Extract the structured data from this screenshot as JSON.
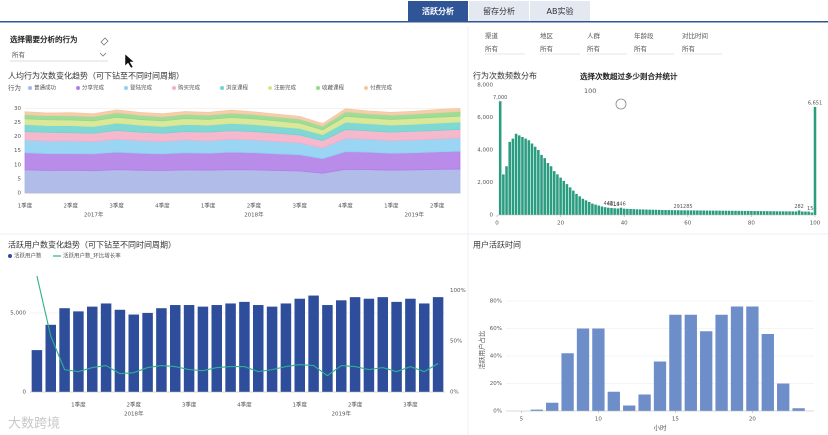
{
  "tabs": [
    "活跃分析",
    "留存分析",
    "AB实验"
  ],
  "behavior_filter": {
    "label": "选择需要分析的行为",
    "value": "所有"
  },
  "filters": [
    {
      "label": "渠道",
      "value": "所有"
    },
    {
      "label": "地区",
      "value": "所有"
    },
    {
      "label": "人群",
      "value": "所有"
    },
    {
      "label": "年龄段",
      "value": "所有"
    },
    {
      "label": "对比时间",
      "value": "所有"
    }
  ],
  "watermark": "大数跨境",
  "chart_data": [
    {
      "type": "area",
      "title": "人均行为次数变化趋势（可下钻至不同时间周期）",
      "legend_title": "行为",
      "categories": [
        "1季度",
        null,
        "2季度",
        null,
        "3季度",
        null,
        "4季度",
        null,
        "1季度",
        null,
        "2季度",
        null,
        "3季度",
        null,
        "4季度",
        null,
        "1季度",
        null,
        "2季度",
        null
      ],
      "group_labels": [
        "2017年",
        "2018年",
        "2019年"
      ],
      "series": [
        {
          "name": "普通成功",
          "color": "#a9b6e6",
          "values": [
            8.2,
            8.0,
            8.1,
            7.9,
            8.3,
            8.1,
            8.0,
            8.2,
            8.1,
            8.3,
            8.2,
            8.0,
            7.8,
            7.0,
            8.4,
            8.3,
            8.1,
            8.2,
            8.4,
            8.5
          ]
        },
        {
          "name": "分享完成",
          "color": "#b27fe8",
          "values": [
            6.1,
            6.0,
            5.9,
            6.0,
            6.2,
            6.0,
            5.9,
            6.1,
            6.0,
            6.2,
            6.1,
            5.9,
            5.8,
            5.2,
            6.3,
            6.2,
            6.0,
            6.1,
            6.2,
            6.3
          ]
        },
        {
          "name": "登陆完成",
          "color": "#8fd0f2",
          "values": [
            4.5,
            4.4,
            4.5,
            4.3,
            4.6,
            4.5,
            4.4,
            4.5,
            4.4,
            4.6,
            4.5,
            4.4,
            4.2,
            3.8,
            4.7,
            4.6,
            4.5,
            4.5,
            4.6,
            4.7
          ]
        },
        {
          "name": "购买完成",
          "color": "#f4b0c8",
          "values": [
            3.0,
            3.1,
            2.9,
            3.0,
            3.1,
            3.0,
            2.9,
            3.0,
            3.1,
            3.0,
            3.0,
            2.9,
            2.8,
            2.6,
            3.1,
            3.0,
            3.0,
            3.1,
            3.0,
            3.1
          ]
        },
        {
          "name": "浏览课程",
          "color": "#72d4cf",
          "values": [
            2.5,
            2.4,
            2.5,
            2.4,
            2.6,
            2.5,
            2.4,
            2.5,
            2.5,
            2.6,
            2.5,
            2.4,
            2.3,
            2.1,
            2.6,
            2.5,
            2.5,
            2.5,
            2.6,
            2.6
          ]
        },
        {
          "name": "注册完成",
          "color": "#d8e68e",
          "values": [
            2.0,
            2.1,
            2.0,
            2.0,
            2.1,
            2.0,
            2.0,
            2.1,
            2.0,
            2.1,
            2.0,
            2.0,
            1.9,
            1.7,
            2.1,
            2.0,
            2.0,
            2.1,
            2.1,
            2.1
          ]
        },
        {
          "name": "收藏课程",
          "color": "#92d98c",
          "values": [
            1.5,
            1.4,
            1.5,
            1.5,
            1.6,
            1.5,
            1.4,
            1.5,
            1.5,
            1.5,
            1.5,
            1.4,
            1.4,
            1.3,
            1.6,
            1.5,
            1.5,
            1.5,
            1.6,
            1.6
          ]
        },
        {
          "name": "付费完成",
          "color": "#f4c9a2",
          "values": [
            1.0,
            1.0,
            1.1,
            1.0,
            1.0,
            1.0,
            1.1,
            1.0,
            1.0,
            1.1,
            1.0,
            1.0,
            1.0,
            0.9,
            1.1,
            1.0,
            1.0,
            1.0,
            1.1,
            1.1
          ]
        }
      ],
      "ylim": [
        0,
        33
      ],
      "yticks": [
        0,
        5,
        10,
        15,
        20,
        25,
        30
      ],
      "grid": true
    },
    {
      "type": "bar",
      "title": "行为次数频数分布",
      "annotation": "选择次数超过多少则合并统计",
      "slider_value": 100,
      "color": "#2a9c80",
      "x": [
        1,
        2,
        3,
        4,
        5,
        6,
        7,
        8,
        9,
        10,
        11,
        12,
        13,
        14,
        15,
        16,
        17,
        18,
        19,
        20,
        21,
        22,
        23,
        24,
        25,
        26,
        27,
        28,
        29,
        30,
        31,
        32,
        33,
        34,
        35,
        36,
        37,
        38,
        39,
        40,
        41,
        42,
        43,
        44,
        45,
        46,
        47,
        48,
        49,
        50,
        51,
        52,
        53,
        54,
        55,
        56,
        57,
        58,
        59,
        60,
        61,
        62,
        63,
        64,
        65,
        66,
        67,
        68,
        69,
        70,
        71,
        72,
        73,
        74,
        75,
        76,
        77,
        78,
        79,
        80,
        81,
        82,
        83,
        84,
        85,
        86,
        87,
        88,
        89,
        90,
        91,
        92,
        93,
        94,
        95,
        96,
        97,
        98,
        99,
        100
      ],
      "values": [
        7000,
        2500,
        3000,
        4500,
        4700,
        5000,
        4900,
        4800,
        4700,
        4600,
        4400,
        4200,
        4000,
        3700,
        3500,
        3200,
        3000,
        2700,
        2500,
        2300,
        2100,
        1900,
        1700,
        1500,
        1300,
        1150,
        1000,
        900,
        800,
        700,
        640,
        580,
        520,
        480,
        448,
        431,
        413,
        400,
        446,
        390,
        380,
        370,
        360,
        350,
        345,
        340,
        335,
        330,
        325,
        320,
        315,
        310,
        305,
        300,
        300,
        295,
        291,
        290,
        288,
        285,
        285,
        282,
        280,
        278,
        276,
        274,
        272,
        270,
        268,
        266,
        264,
        262,
        260,
        258,
        256,
        254,
        252,
        250,
        248,
        246,
        244,
        242,
        240,
        238,
        236,
        234,
        232,
        230,
        228,
        226,
        224,
        222,
        220,
        218,
        282,
        216,
        214,
        212,
        154,
        6651
      ],
      "value_labels": [
        "7,000",
        null,
        null,
        null,
        null,
        null,
        null,
        null,
        null,
        null,
        null,
        null,
        null,
        null,
        null,
        null,
        null,
        null,
        null,
        null,
        null,
        null,
        null,
        null,
        null,
        null,
        null,
        null,
        null,
        null,
        null,
        null,
        null,
        null,
        "448",
        "431",
        "413",
        null,
        "446",
        null,
        null,
        null,
        null,
        null,
        null,
        null,
        null,
        null,
        null,
        null,
        null,
        null,
        null,
        null,
        null,
        null,
        "291",
        null,
        null,
        "285",
        null,
        null,
        null,
        null,
        null,
        null,
        null,
        null,
        null,
        null,
        null,
        null,
        null,
        null,
        null,
        null,
        null,
        null,
        null,
        null,
        null,
        null,
        null,
        null,
        null,
        null,
        null,
        null,
        null,
        null,
        null,
        null,
        null,
        null,
        "282",
        null,
        null,
        null,
        "154",
        "6,651"
      ],
      "xlim": [
        0,
        100
      ],
      "xticks": [
        0,
        20,
        40,
        60,
        80,
        100
      ],
      "ylim": [
        0,
        8000
      ],
      "yticks": [
        0,
        {
          "value": 2000,
          "label": "2,000"
        },
        {
          "value": 4000,
          "label": "4,000"
        },
        {
          "value": 6000,
          "label": "6,000"
        },
        {
          "value": 8000,
          "label": "8,000"
        }
      ],
      "grid": false
    },
    {
      "type": "combo",
      "title": "活跃用户数变化趋势（可下钻至不同时间周期）",
      "categories": [
        null,
        null,
        null,
        "1季度",
        null,
        null,
        null,
        "2季度",
        null,
        null,
        null,
        "3季度",
        null,
        null,
        null,
        "4季度",
        null,
        null,
        null,
        "1季度",
        null,
        null,
        null,
        "2季度",
        null,
        null,
        null,
        "3季度",
        null,
        null
      ],
      "group_labels": [
        "2018年",
        "2019年"
      ],
      "series": [
        {
          "name": "活跃用户数",
          "color": "#2e4e9b",
          "values": [
            2650,
            4250,
            5300,
            5100,
            5400,
            5600,
            5200,
            4900,
            5000,
            5300,
            5500,
            5500,
            5400,
            5500,
            5600,
            5700,
            5500,
            5400,
            5600,
            5900,
            6100,
            5500,
            5800,
            6000,
            5900,
            6000,
            5700,
            5900,
            5600,
            6000
          ]
        },
        {
          "name": "活跃用户数_环比增长率",
          "color": "#2fb08e",
          "axis": "y2",
          "values": [
            114,
            55,
            22,
            20,
            24,
            26,
            18,
            19,
            24,
            26,
            25,
            22,
            21,
            24,
            25,
            25,
            20,
            22,
            25,
            27,
            26,
            16,
            26,
            25,
            22,
            24,
            20,
            25,
            20,
            28
          ]
        }
      ],
      "ylim": [
        0,
        7400
      ],
      "yticks": [
        0,
        {
          "value": 5000,
          "label": "5,000"
        }
      ],
      "y2lim": [
        0,
        115
      ],
      "y2ticks": [
        {
          "value": 0,
          "label": "0%"
        },
        {
          "value": 50,
          "label": "50%"
        },
        {
          "value": 100,
          "label": "100%"
        }
      ],
      "grid": true
    },
    {
      "type": "bar",
      "title": "用户活跃时间",
      "xlabel": "小时",
      "ylabel": "活跃用户占比",
      "color": "#6e8ec9",
      "x": [
        6,
        7,
        8,
        9,
        10,
        11,
        12,
        13,
        14,
        15,
        16,
        17,
        18,
        19,
        20,
        21,
        22,
        23
      ],
      "values": [
        1,
        6,
        42,
        60,
        60,
        14,
        4,
        12,
        36,
        70,
        70,
        58,
        70,
        76,
        76,
        56,
        20,
        2
      ],
      "xlim": [
        4,
        24
      ],
      "xticks": [
        5,
        10,
        15,
        20
      ],
      "ylim": [
        0,
        88
      ],
      "yticks": [
        {
          "value": 0,
          "label": "0%"
        },
        {
          "value": 20,
          "label": "20%"
        },
        {
          "value": 40,
          "label": "40%"
        },
        {
          "value": 60,
          "label": "60%"
        },
        {
          "value": 80,
          "label": "80%"
        }
      ],
      "grid": true
    }
  ]
}
